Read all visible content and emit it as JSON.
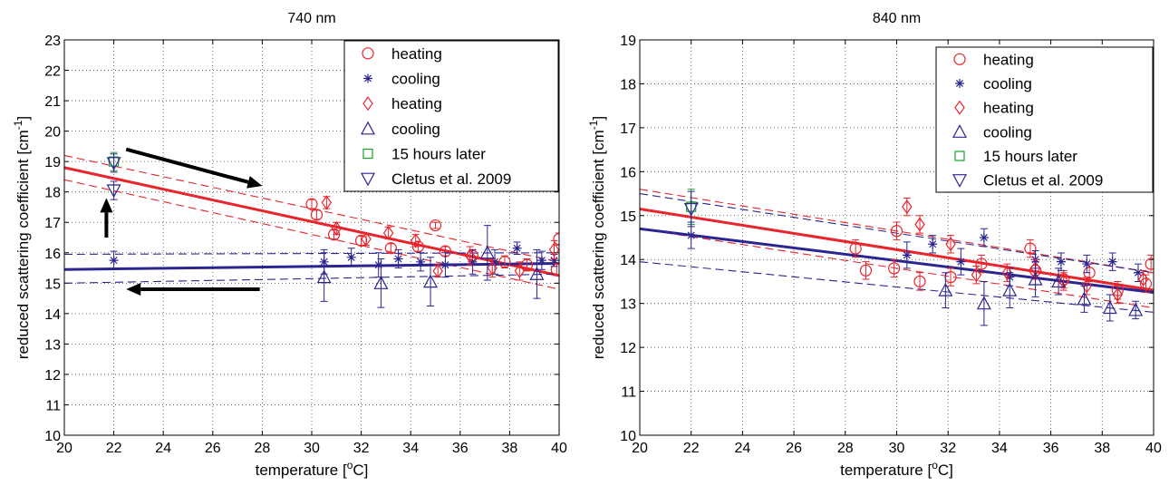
{
  "colors": {
    "heating": "#e8242c",
    "cooling": "#2b2590",
    "later": "#1aa02a",
    "cletus": "#2b2590",
    "arrow": "#000000",
    "grid": "#444444"
  },
  "chart_data": [
    {
      "type": "scatter",
      "title": "740 nm",
      "xlabel": "temperature [",
      "xlabel_sup": "o",
      "xlabel_after": "C]",
      "ylabel": "reduced scattering coefficient [cm",
      "ylabel_sup": "-1",
      "ylabel_after": "]",
      "xlim": [
        20,
        40
      ],
      "ylim": [
        10,
        23
      ],
      "xticks": [
        20,
        22,
        24,
        26,
        28,
        30,
        32,
        34,
        36,
        38,
        40
      ],
      "yticks": [
        10,
        11,
        12,
        13,
        14,
        15,
        16,
        17,
        18,
        19,
        20,
        21,
        22,
        23
      ],
      "grid": true,
      "legend_position": "top-right",
      "legend": [
        {
          "label": "heating",
          "marker": "circle",
          "color": "heating"
        },
        {
          "label": "cooling",
          "marker": "star",
          "color": "cooling"
        },
        {
          "label": "heating",
          "marker": "diamond",
          "color": "heating"
        },
        {
          "label": "cooling",
          "marker": "triangle-up",
          "color": "cooling"
        },
        {
          "label": "15 hours later",
          "marker": "square",
          "color": "later"
        },
        {
          "label": "Cletus et al. 2009",
          "marker": "triangle-down",
          "color": "cletus"
        }
      ],
      "series": [
        {
          "marker": "circle",
          "color": "heating",
          "points": [
            [
              30.0,
              17.6,
              0.15
            ],
            [
              30.2,
              17.25,
              0.15
            ],
            [
              30.9,
              16.6,
              0.15
            ],
            [
              32.0,
              16.4,
              0.15
            ],
            [
              33.2,
              16.15,
              0.15
            ],
            [
              34.3,
              16.2,
              0.15
            ],
            [
              35.0,
              16.9,
              0.1
            ],
            [
              35.4,
              16.05,
              0.15
            ],
            [
              36.5,
              15.9,
              0.2
            ],
            [
              37.8,
              15.7,
              0.2
            ],
            [
              38.7,
              15.6,
              0.2
            ],
            [
              39.9,
              15.45,
              0.2
            ],
            [
              40.0,
              16.45,
              0.2
            ]
          ]
        },
        {
          "marker": "star",
          "color": "cooling",
          "points": [
            [
              22.0,
              15.75,
              0.3
            ],
            [
              30.5,
              15.7,
              0.4
            ],
            [
              31.6,
              15.85,
              0.3
            ],
            [
              32.7,
              15.6,
              0.4
            ],
            [
              33.5,
              15.8,
              0.3
            ],
            [
              34.4,
              15.7,
              0.3
            ],
            [
              35.4,
              15.6,
              0.4
            ],
            [
              36.5,
              15.7,
              0.4
            ],
            [
              37.4,
              15.7,
              0.4
            ],
            [
              38.3,
              16.15,
              0.2
            ],
            [
              39.3,
              15.75,
              0.3
            ],
            [
              39.8,
              15.75,
              0.2
            ]
          ]
        },
        {
          "marker": "diamond",
          "color": "heating",
          "points": [
            [
              30.6,
              17.65,
              0.2
            ],
            [
              31.0,
              16.8,
              0.2
            ],
            [
              32.2,
              16.45,
              0.2
            ],
            [
              33.1,
              16.65,
              0.2
            ],
            [
              34.2,
              16.4,
              0.2
            ],
            [
              35.1,
              15.4,
              0.2
            ],
            [
              36.4,
              15.9,
              0.3
            ],
            [
              37.3,
              15.5,
              0.3
            ],
            [
              38.4,
              15.4,
              0.3
            ],
            [
              39.8,
              16.1,
              0.3
            ]
          ]
        },
        {
          "marker": "triangle-up",
          "color": "cooling",
          "points": [
            [
              30.5,
              15.2,
              0.8
            ],
            [
              32.8,
              15.0,
              0.8
            ],
            [
              34.8,
              15.05,
              0.8
            ],
            [
              37.1,
              16.0,
              0.9
            ],
            [
              39.1,
              15.3,
              0.8
            ]
          ]
        },
        {
          "marker": "square",
          "color": "later",
          "points": [
            [
              22.0,
              19.0,
              0.3
            ]
          ]
        },
        {
          "marker": "triangle-down",
          "color": "cletus",
          "points": [
            [
              22.0,
              18.95,
              0.3
            ],
            [
              22.0,
              18.05,
              0.3
            ]
          ]
        }
      ],
      "fits": [
        {
          "color": "heating",
          "style": "solid",
          "x": [
            20,
            40
          ],
          "y": [
            18.8,
            15.25
          ]
        },
        {
          "color": "heating",
          "style": "dashed",
          "x": [
            20,
            40
          ],
          "y": [
            19.2,
            15.7
          ]
        },
        {
          "color": "heating",
          "style": "dashed",
          "x": [
            20,
            40
          ],
          "y": [
            18.4,
            14.8
          ]
        },
        {
          "color": "cooling",
          "style": "solid",
          "x": [
            20,
            40
          ],
          "y": [
            15.45,
            15.65
          ]
        },
        {
          "color": "cooling",
          "style": "dashed",
          "x": [
            20,
            40
          ],
          "y": [
            15.95,
            16.0
          ]
        },
        {
          "color": "cooling",
          "style": "dashed",
          "x": [
            20,
            40
          ],
          "y": [
            15.0,
            15.3
          ]
        }
      ],
      "arrows": [
        {
          "from": [
            22.5,
            19.4
          ],
          "to": [
            28.0,
            18.2
          ]
        },
        {
          "from": [
            27.9,
            14.8
          ],
          "to": [
            22.5,
            14.8
          ]
        },
        {
          "from": [
            21.7,
            16.5
          ],
          "to": [
            21.7,
            17.8
          ]
        }
      ]
    },
    {
      "type": "scatter",
      "title": "840 nm",
      "xlabel": "temperature [",
      "xlabel_sup": "o",
      "xlabel_after": "C]",
      "ylabel": "reduced scattering coefficient [cm",
      "ylabel_sup": "-1",
      "ylabel_after": "]",
      "xlim": [
        20,
        40
      ],
      "ylim": [
        10,
        19
      ],
      "xticks": [
        20,
        22,
        24,
        26,
        28,
        30,
        32,
        34,
        36,
        38,
        40
      ],
      "yticks": [
        10,
        11,
        12,
        13,
        14,
        15,
        16,
        17,
        18,
        19
      ],
      "grid": true,
      "legend_position": "top-right",
      "legend": [
        {
          "label": "heating",
          "marker": "circle",
          "color": "heating"
        },
        {
          "label": "cooling",
          "marker": "star",
          "color": "cooling"
        },
        {
          "label": "heating",
          "marker": "diamond",
          "color": "heating"
        },
        {
          "label": "cooling",
          "marker": "triangle-up",
          "color": "cooling"
        },
        {
          "label": "15 hours later",
          "marker": "square",
          "color": "later"
        },
        {
          "label": "Cletus et al. 2009",
          "marker": "triangle-down",
          "color": "cletus"
        }
      ],
      "series": [
        {
          "marker": "circle",
          "color": "heating",
          "points": [
            [
              28.4,
              14.25,
              0.2
            ],
            [
              28.8,
              13.75,
              0.2
            ],
            [
              29.9,
              13.8,
              0.2
            ],
            [
              30.0,
              14.65,
              0.2
            ],
            [
              30.9,
              13.5,
              0.2
            ],
            [
              32.1,
              13.6,
              0.2
            ],
            [
              33.3,
              13.9,
              0.2
            ],
            [
              35.2,
              14.25,
              0.2
            ],
            [
              35.4,
              13.75,
              0.2
            ],
            [
              36.5,
              13.55,
              0.2
            ],
            [
              37.5,
              13.7,
              0.2
            ],
            [
              38.6,
              13.3,
              0.2
            ],
            [
              39.7,
              13.45,
              0.2
            ],
            [
              39.9,
              13.9,
              0.2
            ]
          ]
        },
        {
          "marker": "star",
          "color": "cooling",
          "points": [
            [
              22.0,
              14.55,
              0.3
            ],
            [
              30.4,
              14.1,
              0.3
            ],
            [
              31.4,
              14.35,
              0.2
            ],
            [
              32.5,
              13.95,
              0.3
            ],
            [
              33.4,
              14.5,
              0.2
            ],
            [
              34.4,
              13.6,
              0.2
            ],
            [
              35.4,
              14.0,
              0.2
            ],
            [
              36.4,
              13.95,
              0.2
            ],
            [
              37.4,
              13.9,
              0.2
            ],
            [
              38.4,
              13.95,
              0.2
            ],
            [
              39.4,
              13.7,
              0.2
            ]
          ]
        },
        {
          "marker": "diamond",
          "color": "heating",
          "points": [
            [
              30.4,
              15.2,
              0.2
            ],
            [
              30.9,
              14.8,
              0.2
            ],
            [
              32.1,
              14.35,
              0.2
            ],
            [
              33.1,
              13.65,
              0.2
            ],
            [
              34.3,
              13.7,
              0.2
            ],
            [
              35.4,
              13.8,
              0.2
            ],
            [
              36.5,
              13.5,
              0.2
            ],
            [
              37.4,
              13.4,
              0.2
            ],
            [
              38.6,
              13.2,
              0.2
            ],
            [
              39.6,
              13.55,
              0.2
            ]
          ]
        },
        {
          "marker": "triangle-up",
          "color": "cooling",
          "points": [
            [
              31.9,
              13.3,
              0.4
            ],
            [
              33.4,
              13.0,
              0.5
            ],
            [
              34.4,
              13.3,
              0.4
            ],
            [
              35.4,
              13.55,
              0.4
            ],
            [
              36.3,
              13.5,
              0.3
            ],
            [
              37.3,
              13.1,
              0.3
            ],
            [
              38.3,
              12.9,
              0.3
            ],
            [
              39.3,
              12.85,
              0.2
            ]
          ]
        },
        {
          "marker": "square",
          "color": "later",
          "points": [
            [
              22.0,
              15.2,
              0.4
            ]
          ]
        },
        {
          "marker": "triangle-down",
          "color": "cletus",
          "points": [
            [
              22.0,
              15.15,
              0.4
            ]
          ]
        }
      ],
      "fits": [
        {
          "color": "heating",
          "style": "solid",
          "x": [
            20,
            40
          ],
          "y": [
            15.15,
            13.3
          ]
        },
        {
          "color": "heating",
          "style": "dashed",
          "x": [
            20,
            40
          ],
          "y": [
            15.6,
            13.7
          ]
        },
        {
          "color": "heating",
          "style": "dashed",
          "x": [
            20,
            40
          ],
          "y": [
            14.7,
            12.9
          ]
        },
        {
          "color": "cooling",
          "style": "solid",
          "x": [
            20,
            40
          ],
          "y": [
            14.7,
            13.25
          ]
        },
        {
          "color": "cooling",
          "style": "dashed",
          "x": [
            20,
            40
          ],
          "y": [
            15.5,
            13.7
          ]
        },
        {
          "color": "cooling",
          "style": "dashed",
          "x": [
            20,
            40
          ],
          "y": [
            13.95,
            12.8
          ]
        }
      ],
      "arrows": []
    }
  ]
}
